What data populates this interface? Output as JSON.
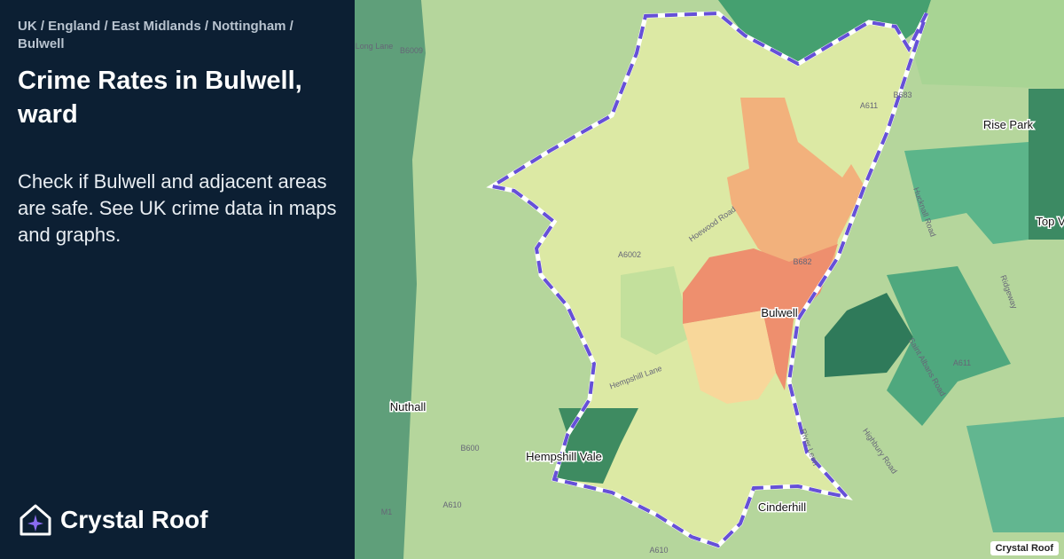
{
  "breadcrumb": "UK / England / East Midlands / Nottingham / Bulwell",
  "title": "Crime Rates in Bulwell, ward",
  "description": "Check if Bulwell and adjacent areas are safe. See UK crime data in maps and graphs.",
  "brand": "Crystal Roof",
  "map": {
    "places": [
      "Bulwell",
      "Rise Park",
      "Nuthall",
      "Hempshill Vale",
      "Cinderhill",
      "Top V"
    ],
    "roads": [
      "Long Lane",
      "B6009",
      "A611",
      "B683",
      "Hoewood Road",
      "A6002",
      "B682",
      "Hempshill Lane",
      "B600",
      "A610",
      "M1",
      "River Leen",
      "Highbury Road",
      "Saint Albans Road",
      "Ridgeway",
      "A611",
      "Hucknall Road",
      "A610"
    ],
    "attribution": "Crystal Roof"
  }
}
